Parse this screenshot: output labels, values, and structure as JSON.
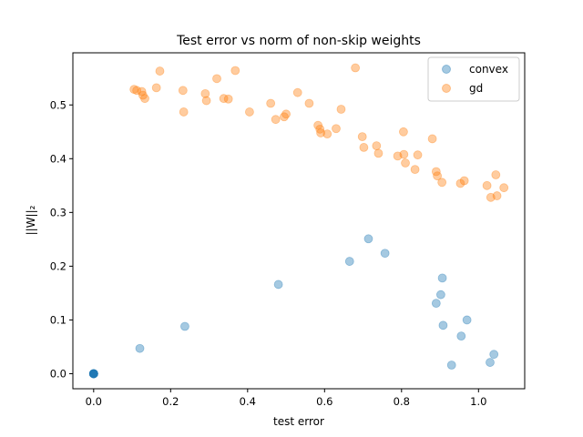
{
  "chart_data": {
    "type": "scatter",
    "title": "Test error vs norm of non-skip weights",
    "xlabel": "test error",
    "ylabel": "||W||₂",
    "xlim": [
      -0.054,
      1.12
    ],
    "ylim": [
      -0.028,
      0.597
    ],
    "xticks": [
      0.0,
      0.2,
      0.4,
      0.6,
      0.8,
      1.0
    ],
    "xtick_labels": [
      "0.0",
      "0.2",
      "0.4",
      "0.6",
      "0.8",
      "1.0"
    ],
    "yticks": [
      0.0,
      0.1,
      0.2,
      0.3,
      0.4,
      0.5
    ],
    "ytick_labels": [
      "0.0",
      "0.1",
      "0.2",
      "0.3",
      "0.4",
      "0.5"
    ],
    "grid": false,
    "legend_position": "top-right",
    "series": [
      {
        "name": "convex",
        "color": "#1f77b4",
        "alpha": 0.4,
        "x": [
          0.0,
          0.0,
          0.0,
          0.0,
          0.0,
          0.0,
          0.0,
          0.0,
          0.12,
          0.237,
          0.48,
          0.665,
          0.714,
          0.757,
          0.89,
          0.902,
          0.906,
          0.908,
          0.93,
          0.955,
          0.97,
          1.03,
          1.04
        ],
        "y": [
          0.0,
          0.0,
          0.0,
          0.0,
          0.0,
          0.0,
          0.0,
          0.0,
          0.047,
          0.088,
          0.166,
          0.209,
          0.251,
          0.224,
          0.131,
          0.147,
          0.178,
          0.09,
          0.016,
          0.07,
          0.1,
          0.021,
          0.036
        ]
      },
      {
        "name": "gd",
        "color": "#ff7f0e",
        "alpha": 0.4,
        "x": [
          0.105,
          0.112,
          0.125,
          0.128,
          0.133,
          0.163,
          0.172,
          0.232,
          0.234,
          0.29,
          0.293,
          0.32,
          0.338,
          0.35,
          0.368,
          0.405,
          0.46,
          0.473,
          0.495,
          0.5,
          0.53,
          0.56,
          0.583,
          0.588,
          0.59,
          0.607,
          0.63,
          0.643,
          0.68,
          0.698,
          0.702,
          0.735,
          0.74,
          0.79,
          0.805,
          0.806,
          0.81,
          0.835,
          0.842,
          0.88,
          0.89,
          0.893,
          0.905,
          0.953,
          0.963,
          1.022,
          1.032,
          1.045,
          1.048,
          1.066
        ],
        "y": [
          0.529,
          0.527,
          0.525,
          0.518,
          0.512,
          0.532,
          0.563,
          0.527,
          0.487,
          0.521,
          0.508,
          0.549,
          0.512,
          0.511,
          0.564,
          0.487,
          0.503,
          0.473,
          0.478,
          0.483,
          0.523,
          0.503,
          0.462,
          0.455,
          0.448,
          0.446,
          0.456,
          0.492,
          0.569,
          0.441,
          0.421,
          0.424,
          0.41,
          0.405,
          0.45,
          0.408,
          0.392,
          0.38,
          0.407,
          0.437,
          0.376,
          0.368,
          0.356,
          0.354,
          0.359,
          0.35,
          0.328,
          0.37,
          0.331,
          0.346
        ]
      }
    ]
  }
}
